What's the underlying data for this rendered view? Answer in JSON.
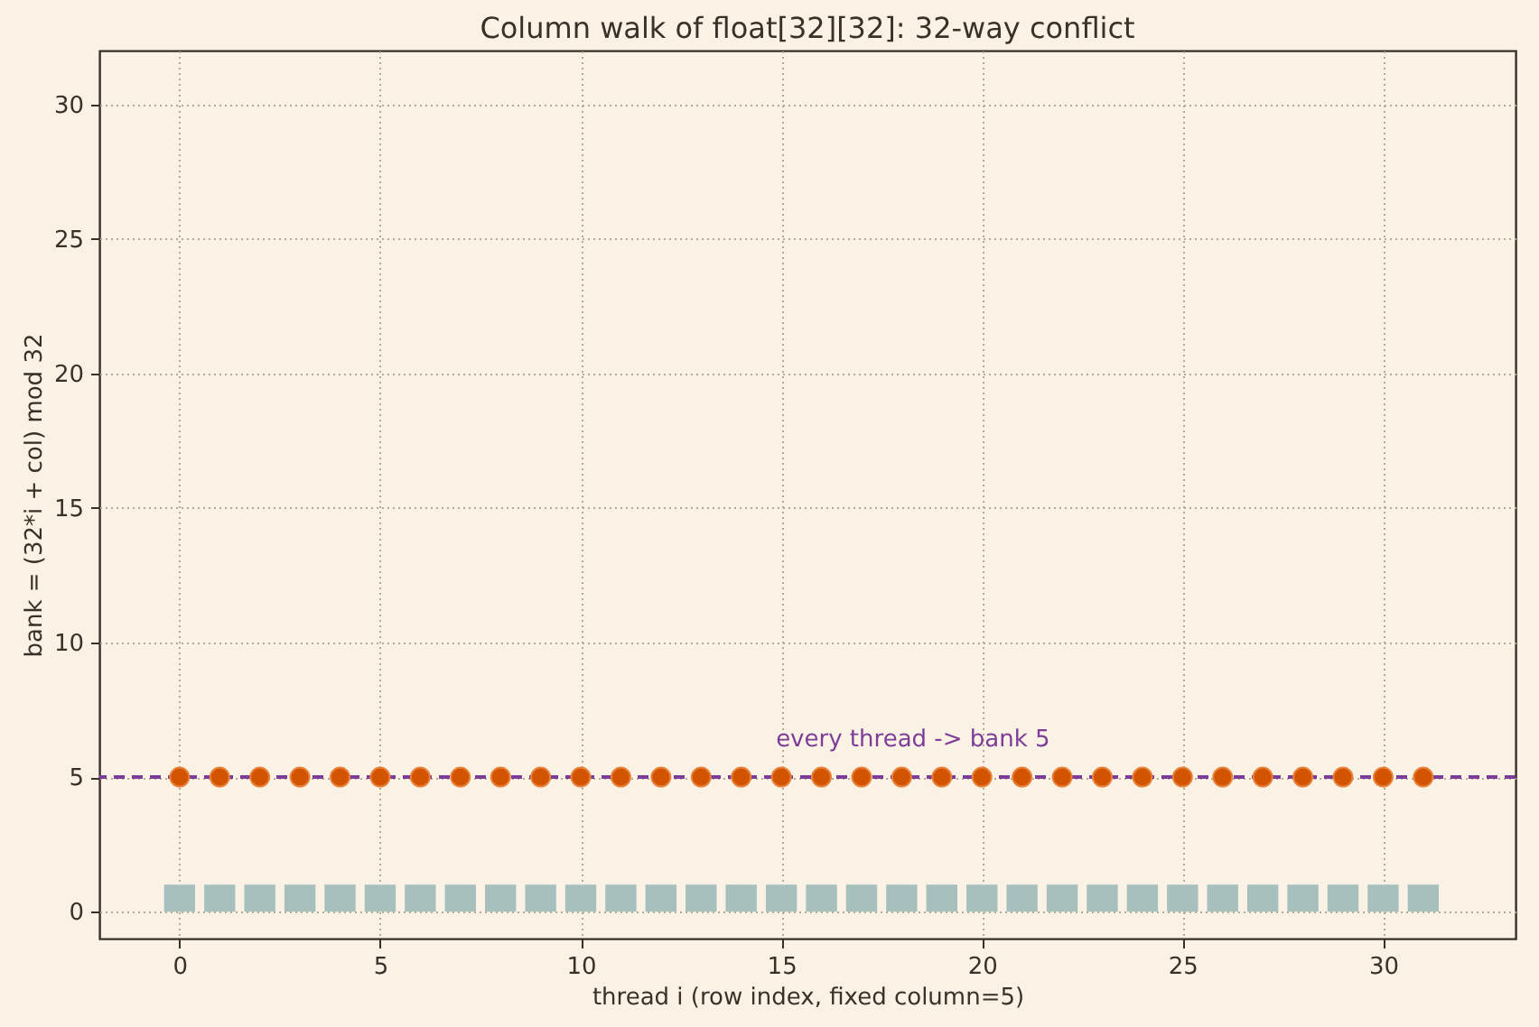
{
  "chart_data": {
    "type": "scatter",
    "title": "Column walk of float[32][32]: 32-way conflict",
    "xlabel": "thread i (row index, fixed column=5)",
    "ylabel": "bank = (32*i + col) mod 32",
    "x": [
      0,
      1,
      2,
      3,
      4,
      5,
      6,
      7,
      8,
      9,
      10,
      11,
      12,
      13,
      14,
      15,
      16,
      17,
      18,
      19,
      20,
      21,
      22,
      23,
      24,
      25,
      26,
      27,
      28,
      29,
      30,
      31
    ],
    "series": [
      {
        "type": "bar",
        "color": "#a7c0bd",
        "values": [
          1,
          1,
          1,
          1,
          1,
          1,
          1,
          1,
          1,
          1,
          1,
          1,
          1,
          1,
          1,
          1,
          1,
          1,
          1,
          1,
          1,
          1,
          1,
          1,
          1,
          1,
          1,
          1,
          1,
          1,
          1,
          1
        ]
      },
      {
        "color": "#d35400",
        "values": [
          5,
          5,
          5,
          5,
          5,
          5,
          5,
          5,
          5,
          5,
          5,
          5,
          5,
          5,
          5,
          5,
          5,
          5,
          5,
          5,
          5,
          5,
          5,
          5,
          5,
          5,
          5,
          5,
          5,
          5,
          5,
          5
        ]
      }
    ],
    "marker": "circle",
    "xlim": [
      -2,
      33.3
    ],
    "ylim": [
      -1,
      32
    ],
    "xticks": [
      0,
      5,
      10,
      15,
      20,
      25,
      30
    ],
    "yticks": [
      0,
      5,
      10,
      15,
      20,
      25,
      30
    ],
    "grid": true,
    "ref_lines": [
      {
        "axis": "y",
        "value": 5,
        "color": "#7d3c98",
        "line_style": "dashed"
      }
    ],
    "annotations": [
      {
        "text": "every thread -> bank 5",
        "x": 15,
        "y": 5
      }
    ]
  }
}
